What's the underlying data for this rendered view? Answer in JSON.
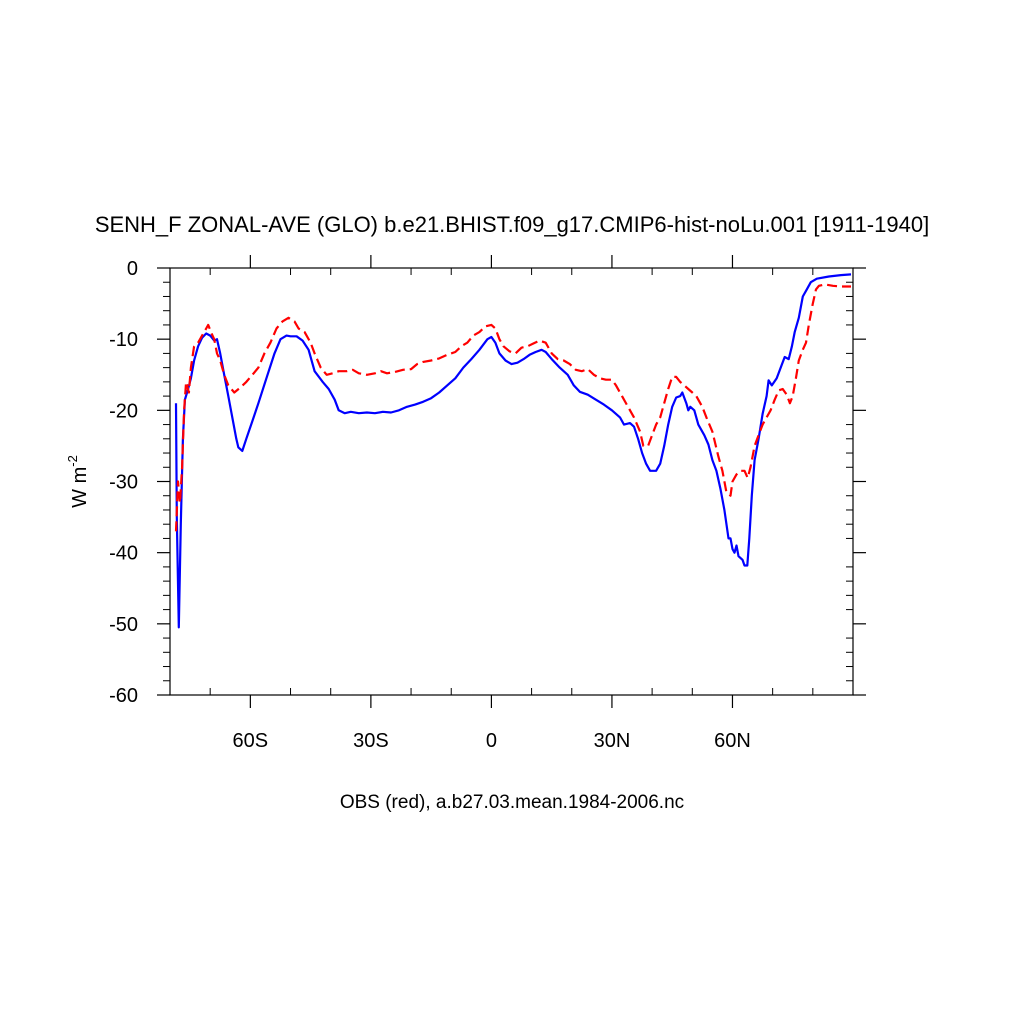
{
  "chart_data": {
    "type": "line",
    "title": "SENH_F ZONAL-AVE (GLO) b.e21.BHIST.f09_g17.CMIP6-hist-noLu.001 [1911-1940]",
    "ylabel_base": "W m",
    "ylabel_exp": "-2",
    "footer": "OBS (red), a.b27.03.mean.1984-2006.nc",
    "xlim": [
      -80,
      90
    ],
    "ylim": [
      -60,
      0
    ],
    "x_ticks": [
      {
        "value": -60,
        "label": "60S"
      },
      {
        "value": -30,
        "label": "30S"
      },
      {
        "value": 0,
        "label": "0"
      },
      {
        "value": 30,
        "label": "30N"
      },
      {
        "value": 60,
        "label": "60N"
      }
    ],
    "y_ticks": [
      {
        "value": 0,
        "label": "0"
      },
      {
        "value": -10,
        "label": "-10"
      },
      {
        "value": -20,
        "label": "-20"
      },
      {
        "value": -30,
        "label": "-30"
      },
      {
        "value": -40,
        "label": "-40"
      },
      {
        "value": -50,
        "label": "-50"
      },
      {
        "value": -60,
        "label": "-60"
      }
    ],
    "series": [
      {
        "color": "#0000ff",
        "dash": "solid",
        "points": [
          [
            -78.5,
            -19
          ],
          [
            -78.3,
            -35
          ],
          [
            -77.8,
            -50.5
          ],
          [
            -77.3,
            -36
          ],
          [
            -76.8,
            -24
          ],
          [
            -76.3,
            -18.5
          ],
          [
            -75.5,
            -17
          ],
          [
            -74.8,
            -15.5
          ],
          [
            -74,
            -13
          ],
          [
            -73,
            -11
          ],
          [
            -72,
            -9.8
          ],
          [
            -71,
            -9.2
          ],
          [
            -70,
            -9.5
          ],
          [
            -69,
            -10.2
          ],
          [
            -68.3,
            -10
          ],
          [
            -67.5,
            -12
          ],
          [
            -66.5,
            -15
          ],
          [
            -65.5,
            -18
          ],
          [
            -64.5,
            -21
          ],
          [
            -63.5,
            -24
          ],
          [
            -63,
            -25.2
          ],
          [
            -62,
            -25.7
          ],
          [
            -61,
            -24
          ],
          [
            -59.5,
            -21.5
          ],
          [
            -58,
            -19
          ],
          [
            -56,
            -15.5
          ],
          [
            -54,
            -12
          ],
          [
            -52.5,
            -10
          ],
          [
            -51,
            -9.5
          ],
          [
            -50,
            -9.6
          ],
          [
            -48.5,
            -9.6
          ],
          [
            -47,
            -10.2
          ],
          [
            -45.5,
            -11.5
          ],
          [
            -44,
            -14.5
          ],
          [
            -42,
            -16
          ],
          [
            -40.5,
            -17
          ],
          [
            -39,
            -18.5
          ],
          [
            -38,
            -20
          ],
          [
            -36.5,
            -20.4
          ],
          [
            -35,
            -20.2
          ],
          [
            -33,
            -20.4
          ],
          [
            -31,
            -20.3
          ],
          [
            -29,
            -20.4
          ],
          [
            -27,
            -20.2
          ],
          [
            -25,
            -20.3
          ],
          [
            -23,
            -20
          ],
          [
            -21,
            -19.5
          ],
          [
            -19,
            -19.2
          ],
          [
            -17,
            -18.8
          ],
          [
            -15,
            -18.3
          ],
          [
            -13,
            -17.5
          ],
          [
            -11,
            -16.5
          ],
          [
            -9,
            -15.5
          ],
          [
            -7,
            -14
          ],
          [
            -5,
            -12.8
          ],
          [
            -3,
            -11.5
          ],
          [
            -1,
            -10
          ],
          [
            0,
            -9.7
          ],
          [
            1,
            -10.5
          ],
          [
            2,
            -12
          ],
          [
            3.5,
            -13
          ],
          [
            5,
            -13.5
          ],
          [
            6.5,
            -13.3
          ],
          [
            8,
            -12.8
          ],
          [
            9.5,
            -12.2
          ],
          [
            11,
            -11.8
          ],
          [
            12.5,
            -11.5
          ],
          [
            13.5,
            -11.8
          ],
          [
            15,
            -12.8
          ],
          [
            17,
            -14
          ],
          [
            19,
            -15
          ],
          [
            20.5,
            -16.5
          ],
          [
            22,
            -17.4
          ],
          [
            24,
            -17.8
          ],
          [
            26,
            -18.5
          ],
          [
            28,
            -19.2
          ],
          [
            30,
            -20
          ],
          [
            32,
            -21
          ],
          [
            33,
            -22
          ],
          [
            34.5,
            -21.8
          ],
          [
            35.5,
            -22.3
          ],
          [
            36.5,
            -24
          ],
          [
            37.5,
            -26
          ],
          [
            38.5,
            -27.5
          ],
          [
            39.5,
            -28.5
          ],
          [
            41,
            -28.5
          ],
          [
            42,
            -27.5
          ],
          [
            43,
            -25
          ],
          [
            44,
            -22
          ],
          [
            45,
            -19.5
          ],
          [
            46,
            -18.2
          ],
          [
            47,
            -18
          ],
          [
            47.5,
            -17.5
          ],
          [
            48.5,
            -19
          ],
          [
            49,
            -20
          ],
          [
            49.5,
            -19.5
          ],
          [
            50.5,
            -20
          ],
          [
            51.5,
            -22
          ],
          [
            53,
            -23.5
          ],
          [
            54,
            -24.8
          ],
          [
            55,
            -27
          ],
          [
            56,
            -28.5
          ],
          [
            57,
            -31
          ],
          [
            58,
            -34
          ],
          [
            59,
            -38
          ],
          [
            59.5,
            -38
          ],
          [
            60,
            -39.5
          ],
          [
            60.5,
            -40
          ],
          [
            61,
            -39
          ],
          [
            61.5,
            -40.5
          ],
          [
            62.5,
            -41
          ],
          [
            63,
            -41.8
          ],
          [
            63.7,
            -41.8
          ],
          [
            64.2,
            -38
          ],
          [
            64.8,
            -32
          ],
          [
            65.5,
            -27
          ],
          [
            66.5,
            -24
          ],
          [
            67.5,
            -20.5
          ],
          [
            68.5,
            -18
          ],
          [
            69,
            -15.8
          ],
          [
            69.8,
            -16.5
          ],
          [
            71,
            -15.5
          ],
          [
            72,
            -14
          ],
          [
            73,
            -12.5
          ],
          [
            74,
            -12.8
          ],
          [
            74.8,
            -11
          ],
          [
            75.5,
            -9
          ],
          [
            76.5,
            -7
          ],
          [
            77.5,
            -4
          ],
          [
            78.5,
            -3
          ],
          [
            79.5,
            -2
          ],
          [
            81,
            -1.5
          ],
          [
            84,
            -1.2
          ],
          [
            87,
            -1
          ],
          [
            89.5,
            -0.9
          ]
        ]
      },
      {
        "color": "#ff0000",
        "dash": "dashed",
        "points": [
          [
            -78.5,
            -37
          ],
          [
            -78,
            -30
          ],
          [
            -77.5,
            -33
          ],
          [
            -77,
            -28
          ],
          [
            -76.5,
            -20
          ],
          [
            -76,
            -16
          ],
          [
            -75.3,
            -17.5
          ],
          [
            -74.8,
            -14
          ],
          [
            -74,
            -11
          ],
          [
            -73,
            -10.5
          ],
          [
            -72,
            -9.5
          ],
          [
            -71,
            -8.5
          ],
          [
            -70.5,
            -8
          ],
          [
            -69.8,
            -9
          ],
          [
            -69,
            -10
          ],
          [
            -68.3,
            -12
          ],
          [
            -67.5,
            -13
          ],
          [
            -66.5,
            -15
          ],
          [
            -65.5,
            -16.5
          ],
          [
            -64,
            -17.5
          ],
          [
            -62.5,
            -16.8
          ],
          [
            -61,
            -16
          ],
          [
            -59.5,
            -15
          ],
          [
            -58,
            -14
          ],
          [
            -56.5,
            -12
          ],
          [
            -55,
            -10.5
          ],
          [
            -53.5,
            -8.5
          ],
          [
            -52,
            -7.5
          ],
          [
            -50.5,
            -7
          ],
          [
            -49,
            -7.5
          ],
          [
            -48,
            -8.5
          ],
          [
            -46.5,
            -9
          ],
          [
            -45,
            -10.5
          ],
          [
            -44,
            -12
          ],
          [
            -42.5,
            -14
          ],
          [
            -41,
            -15
          ],
          [
            -39.5,
            -14.8
          ],
          [
            -38,
            -14.5
          ],
          [
            -36,
            -14.5
          ],
          [
            -34.5,
            -14.3
          ],
          [
            -33,
            -14.8
          ],
          [
            -31,
            -15
          ],
          [
            -29,
            -14.8
          ],
          [
            -27.5,
            -14.5
          ],
          [
            -26,
            -14.8
          ],
          [
            -24,
            -14.6
          ],
          [
            -22,
            -14.3
          ],
          [
            -20,
            -14.2
          ],
          [
            -18.5,
            -13.5
          ],
          [
            -17,
            -13.2
          ],
          [
            -15,
            -13
          ],
          [
            -13,
            -12.7
          ],
          [
            -11,
            -12.2
          ],
          [
            -9,
            -11.8
          ],
          [
            -7.5,
            -11
          ],
          [
            -6,
            -10.5
          ],
          [
            -4.5,
            -9.5
          ],
          [
            -3,
            -9
          ],
          [
            -1.5,
            -8.2
          ],
          [
            0,
            -8
          ],
          [
            1,
            -8.5
          ],
          [
            2,
            -10
          ],
          [
            3,
            -11
          ],
          [
            4.5,
            -11.7
          ],
          [
            6,
            -12
          ],
          [
            7.5,
            -11.2
          ],
          [
            9,
            -11
          ],
          [
            10.5,
            -10.6
          ],
          [
            12,
            -10.2
          ],
          [
            13.5,
            -10.5
          ],
          [
            15,
            -12
          ],
          [
            16.5,
            -12.8
          ],
          [
            18,
            -13
          ],
          [
            19.5,
            -13.5
          ],
          [
            21,
            -14.3
          ],
          [
            22.5,
            -14.5
          ],
          [
            24,
            -14.2
          ],
          [
            25.5,
            -15
          ],
          [
            27,
            -15.5
          ],
          [
            28.5,
            -15.7
          ],
          [
            30,
            -15.7
          ],
          [
            31,
            -16.5
          ],
          [
            32.5,
            -18
          ],
          [
            34,
            -19.5
          ],
          [
            35.5,
            -21
          ],
          [
            37,
            -23
          ],
          [
            37.8,
            -25
          ],
          [
            39,
            -25
          ],
          [
            40,
            -23.5
          ],
          [
            41,
            -22
          ],
          [
            42,
            -21
          ],
          [
            43,
            -19
          ],
          [
            44,
            -17
          ],
          [
            45,
            -15.3
          ],
          [
            46,
            -15.3
          ],
          [
            47,
            -16
          ],
          [
            48,
            -16.5
          ],
          [
            49,
            -17
          ],
          [
            50,
            -17.5
          ],
          [
            51,
            -18
          ],
          [
            52.5,
            -19.5
          ],
          [
            53.5,
            -21
          ],
          [
            55,
            -23
          ],
          [
            56.5,
            -26.5
          ],
          [
            57.5,
            -28.5
          ],
          [
            58.5,
            -31.5
          ],
          [
            59.5,
            -32
          ],
          [
            60,
            -30
          ],
          [
            61,
            -29
          ],
          [
            62,
            -28.5
          ],
          [
            63,
            -28.5
          ],
          [
            63.8,
            -29.5
          ],
          [
            64.5,
            -28
          ],
          [
            65.5,
            -25
          ],
          [
            66.5,
            -23.5
          ],
          [
            67.5,
            -22
          ],
          [
            68.5,
            -21
          ],
          [
            69.5,
            -20
          ],
          [
            70.5,
            -18.5
          ],
          [
            71.5,
            -17.2
          ],
          [
            72.5,
            -17
          ],
          [
            73.5,
            -17.8
          ],
          [
            74.3,
            -19
          ],
          [
            75,
            -18
          ],
          [
            75.8,
            -15.5
          ],
          [
            76.5,
            -13
          ],
          [
            77.5,
            -11.5
          ],
          [
            78.3,
            -10.5
          ],
          [
            79,
            -8
          ],
          [
            80,
            -5
          ],
          [
            80.8,
            -3
          ],
          [
            81.5,
            -2.5
          ],
          [
            83,
            -2.3
          ],
          [
            85,
            -2.5
          ],
          [
            87,
            -2.6
          ],
          [
            89.5,
            -2.6
          ]
        ]
      }
    ]
  }
}
